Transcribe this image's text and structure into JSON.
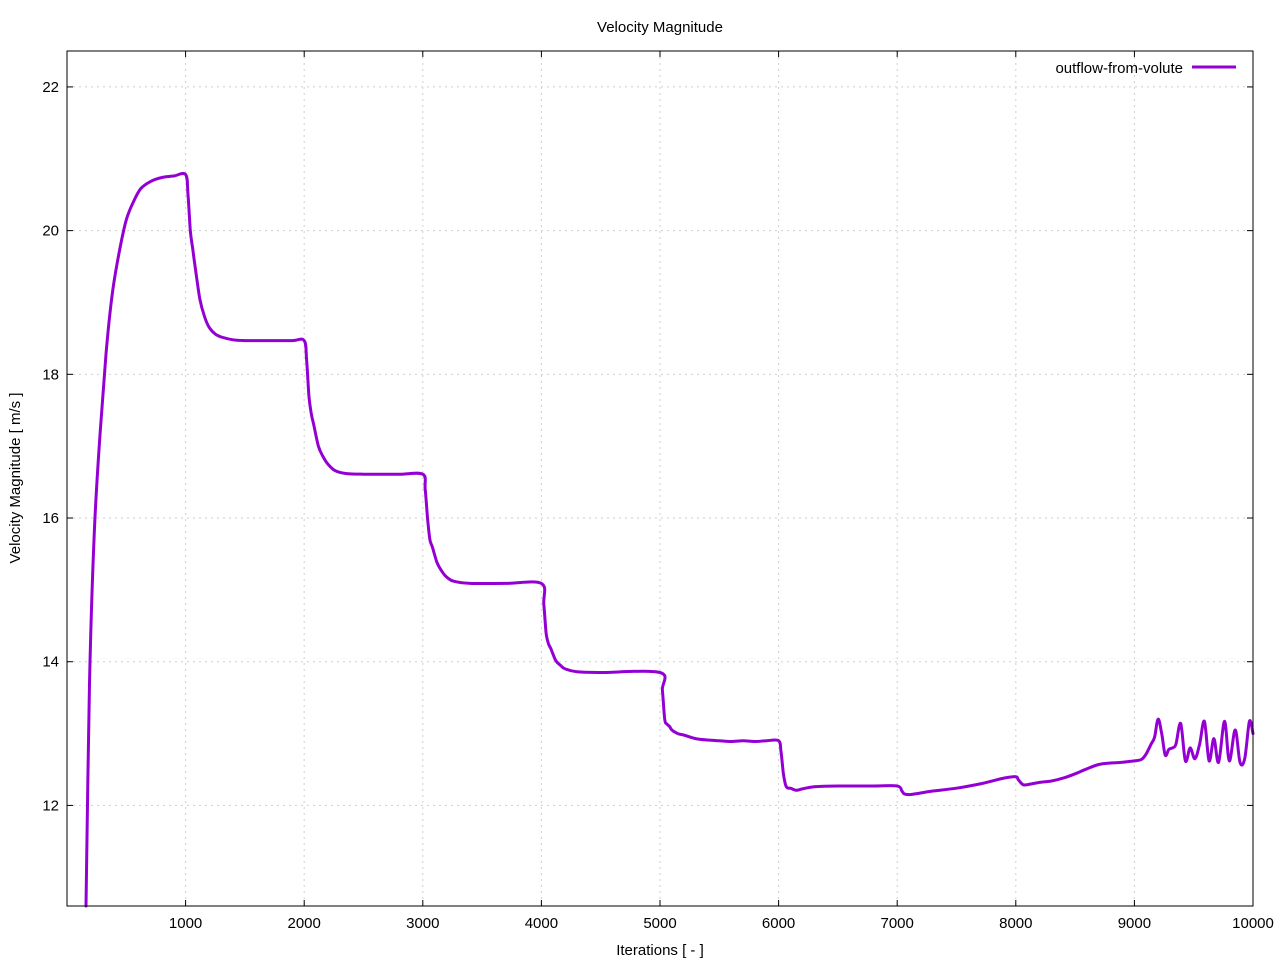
{
  "chart_data": {
    "type": "line",
    "title": "Velocity Magnitude",
    "xlabel": "Iterations [ - ]",
    "ylabel": "Velocity Magnitude [ m/s ]",
    "xlim": [
      0,
      10000
    ],
    "ylim": [
      10.6,
      22.5
    ],
    "xticks": [
      1000,
      2000,
      3000,
      4000,
      5000,
      6000,
      7000,
      8000,
      9000,
      10000
    ],
    "yticks": [
      12,
      14,
      16,
      18,
      20,
      22
    ],
    "grid": true,
    "legend_position": "top-right",
    "series": [
      {
        "name": "outflow-from-volute",
        "color": "#9400D3",
        "points": [
          [
            160,
            10.6
          ],
          [
            190,
            13.7
          ],
          [
            230,
            15.8
          ],
          [
            280,
            17.2
          ],
          [
            330,
            18.3
          ],
          [
            380,
            19.1
          ],
          [
            440,
            19.7
          ],
          [
            500,
            20.15
          ],
          [
            560,
            20.4
          ],
          [
            620,
            20.58
          ],
          [
            700,
            20.68
          ],
          [
            800,
            20.74
          ],
          [
            900,
            20.76
          ],
          [
            1000,
            20.78
          ],
          [
            1020,
            20.5
          ],
          [
            1040,
            20.0
          ],
          [
            1060,
            19.75
          ],
          [
            1080,
            19.5
          ],
          [
            1120,
            19.05
          ],
          [
            1160,
            18.8
          ],
          [
            1200,
            18.65
          ],
          [
            1250,
            18.56
          ],
          [
            1300,
            18.52
          ],
          [
            1400,
            18.48
          ],
          [
            1500,
            18.47
          ],
          [
            1700,
            18.47
          ],
          [
            1900,
            18.47
          ],
          [
            2000,
            18.47
          ],
          [
            2020,
            18.2
          ],
          [
            2040,
            17.7
          ],
          [
            2060,
            17.45
          ],
          [
            2080,
            17.3
          ],
          [
            2120,
            17.0
          ],
          [
            2160,
            16.85
          ],
          [
            2200,
            16.75
          ],
          [
            2260,
            16.66
          ],
          [
            2350,
            16.62
          ],
          [
            2500,
            16.61
          ],
          [
            2800,
            16.61
          ],
          [
            3000,
            16.61
          ],
          [
            3020,
            16.4
          ],
          [
            3040,
            16.0
          ],
          [
            3060,
            15.7
          ],
          [
            3080,
            15.6
          ],
          [
            3120,
            15.38
          ],
          [
            3160,
            15.26
          ],
          [
            3200,
            15.18
          ],
          [
            3260,
            15.12
          ],
          [
            3400,
            15.09
          ],
          [
            3700,
            15.09
          ],
          [
            4000,
            15.09
          ],
          [
            4020,
            14.8
          ],
          [
            4040,
            14.4
          ],
          [
            4060,
            14.25
          ],
          [
            4080,
            14.18
          ],
          [
            4120,
            14.02
          ],
          [
            4160,
            13.95
          ],
          [
            4200,
            13.9
          ],
          [
            4300,
            13.86
          ],
          [
            4500,
            13.85
          ],
          [
            5000,
            13.85
          ],
          [
            5020,
            13.6
          ],
          [
            5040,
            13.2
          ],
          [
            5060,
            13.13
          ],
          [
            5080,
            13.1
          ],
          [
            5100,
            13.05
          ],
          [
            5150,
            13.0
          ],
          [
            5200,
            12.98
          ],
          [
            5300,
            12.93
          ],
          [
            5400,
            12.91
          ],
          [
            5500,
            12.9
          ],
          [
            5600,
            12.89
          ],
          [
            5700,
            12.9
          ],
          [
            5800,
            12.89
          ],
          [
            5900,
            12.9
          ],
          [
            6000,
            12.9
          ],
          [
            6020,
            12.75
          ],
          [
            6040,
            12.45
          ],
          [
            6060,
            12.28
          ],
          [
            6080,
            12.24
          ],
          [
            6100,
            12.24
          ],
          [
            6150,
            12.21
          ],
          [
            6200,
            12.23
          ],
          [
            6300,
            12.26
          ],
          [
            6500,
            12.27
          ],
          [
            6800,
            12.27
          ],
          [
            7000,
            12.27
          ],
          [
            7040,
            12.2
          ],
          [
            7060,
            12.16
          ],
          [
            7100,
            12.15
          ],
          [
            7150,
            12.16
          ],
          [
            7300,
            12.2
          ],
          [
            7500,
            12.24
          ],
          [
            7700,
            12.3
          ],
          [
            7800,
            12.34
          ],
          [
            7900,
            12.38
          ],
          [
            8000,
            12.4
          ],
          [
            8020,
            12.36
          ],
          [
            8060,
            12.29
          ],
          [
            8100,
            12.29
          ],
          [
            8200,
            12.32
          ],
          [
            8300,
            12.34
          ],
          [
            8400,
            12.38
          ],
          [
            8500,
            12.44
          ],
          [
            8600,
            12.51
          ],
          [
            8700,
            12.57
          ],
          [
            8800,
            12.59
          ],
          [
            8900,
            12.6
          ],
          [
            9000,
            12.62
          ],
          [
            9060,
            12.64
          ],
          [
            9100,
            12.72
          ],
          [
            9140,
            12.85
          ],
          [
            9170,
            12.95
          ],
          [
            9200,
            13.2
          ],
          [
            9230,
            13.0
          ],
          [
            9260,
            12.7
          ],
          [
            9290,
            12.78
          ],
          [
            9320,
            12.8
          ],
          [
            9350,
            12.85
          ],
          [
            9390,
            13.14
          ],
          [
            9430,
            12.62
          ],
          [
            9470,
            12.8
          ],
          [
            9510,
            12.65
          ],
          [
            9550,
            12.85
          ],
          [
            9590,
            13.17
          ],
          [
            9630,
            12.62
          ],
          [
            9670,
            12.93
          ],
          [
            9710,
            12.6
          ],
          [
            9760,
            13.17
          ],
          [
            9800,
            12.62
          ],
          [
            9850,
            13.05
          ],
          [
            9890,
            12.6
          ],
          [
            9930,
            12.65
          ],
          [
            9970,
            13.17
          ],
          [
            10000,
            13.0
          ]
        ]
      }
    ]
  }
}
